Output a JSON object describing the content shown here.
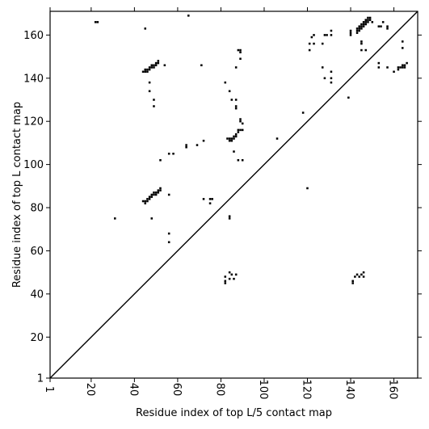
{
  "chart_data": {
    "type": "scatter",
    "xlabel": "Residue index of top L/5 contact map",
    "ylabel": "Residue index of top L contact map",
    "xlim": [
      1,
      171
    ],
    "ylim": [
      1,
      171
    ],
    "x_ticks": [
      1,
      20,
      40,
      60,
      80,
      100,
      120,
      140,
      160
    ],
    "y_ticks": [
      1,
      20,
      40,
      60,
      80,
      100,
      120,
      140,
      160
    ],
    "x_tick_labels": [
      "1",
      "20",
      "40",
      "60",
      "80",
      "100",
      "120",
      "140",
      "160"
    ],
    "y_tick_labels": [
      "1",
      "20",
      "40",
      "60",
      "80",
      "100",
      "120",
      "140",
      "160"
    ],
    "diagonal": true,
    "grid": false,
    "marker_color": "#000000",
    "upper_triangle": [
      [
        22,
        166
      ],
      [
        23,
        166
      ],
      [
        45,
        163
      ],
      [
        65,
        169
      ],
      [
        44,
        143
      ],
      [
        45,
        143
      ],
      [
        45,
        144
      ],
      [
        46,
        143
      ],
      [
        46,
        144
      ],
      [
        47,
        144
      ],
      [
        47,
        145
      ],
      [
        48,
        145
      ],
      [
        48,
        146
      ],
      [
        49,
        145
      ],
      [
        49,
        146
      ],
      [
        50,
        146
      ],
      [
        50,
        147
      ],
      [
        51,
        147
      ],
      [
        51,
        148
      ],
      [
        54,
        146
      ],
      [
        47,
        138
      ],
      [
        47,
        134
      ],
      [
        49,
        130
      ],
      [
        49,
        127
      ],
      [
        71,
        146
      ],
      [
        82,
        138
      ],
      [
        84,
        134
      ],
      [
        85,
        130
      ],
      [
        87,
        130
      ],
      [
        87,
        127
      ],
      [
        87,
        126
      ],
      [
        87,
        145
      ],
      [
        88,
        153
      ],
      [
        89,
        153
      ],
      [
        89,
        152
      ],
      [
        89,
        149
      ],
      [
        89,
        121
      ],
      [
        89,
        120
      ],
      [
        90,
        119
      ],
      [
        83,
        112
      ],
      [
        84,
        112
      ],
      [
        84,
        111
      ],
      [
        85,
        112
      ],
      [
        85,
        111
      ],
      [
        86,
        112
      ],
      [
        86,
        113
      ],
      [
        87,
        113
      ],
      [
        87,
        114
      ],
      [
        88,
        115
      ],
      [
        88,
        116
      ],
      [
        89,
        116
      ],
      [
        90,
        116
      ],
      [
        86,
        106
      ],
      [
        88,
        102
      ],
      [
        90,
        102
      ],
      [
        106,
        112
      ],
      [
        118,
        124
      ],
      [
        52,
        102
      ],
      [
        56,
        105
      ],
      [
        58,
        105
      ],
      [
        64,
        109
      ],
      [
        64,
        108
      ],
      [
        69,
        109
      ],
      [
        72,
        111
      ],
      [
        44,
        83
      ],
      [
        45,
        83
      ],
      [
        45,
        82
      ],
      [
        46,
        83
      ],
      [
        46,
        84
      ],
      [
        47,
        84
      ],
      [
        47,
        85
      ],
      [
        48,
        85
      ],
      [
        48,
        86
      ],
      [
        49,
        86
      ],
      [
        49,
        87
      ],
      [
        50,
        87
      ],
      [
        50,
        86
      ],
      [
        51,
        87
      ],
      [
        51,
        88
      ],
      [
        52,
        88
      ],
      [
        52,
        89
      ],
      [
        56,
        86
      ],
      [
        48,
        75
      ],
      [
        31,
        75
      ],
      [
        72,
        84
      ],
      [
        75,
        84
      ],
      [
        76,
        84
      ],
      [
        75,
        82
      ],
      [
        84,
        76
      ],
      [
        84,
        75
      ],
      [
        56,
        68
      ],
      [
        56,
        64
      ],
      [
        82,
        48
      ],
      [
        82,
        46
      ],
      [
        82,
        45
      ],
      [
        84,
        50
      ],
      [
        85,
        49
      ],
      [
        87,
        49
      ],
      [
        84,
        47
      ],
      [
        86,
        47
      ],
      [
        141,
        46
      ],
      [
        141,
        45
      ],
      [
        142,
        48
      ],
      [
        143,
        49
      ],
      [
        144,
        48
      ],
      [
        145,
        49
      ],
      [
        146,
        50
      ],
      [
        146,
        48
      ],
      [
        139,
        131
      ],
      [
        120,
        89
      ],
      [
        121,
        153
      ],
      [
        121,
        156
      ],
      [
        122,
        159
      ],
      [
        123,
        160
      ],
      [
        123,
        156
      ],
      [
        127,
        156
      ],
      [
        128,
        160
      ],
      [
        129,
        160
      ],
      [
        131,
        162
      ],
      [
        131,
        160
      ],
      [
        127,
        145
      ],
      [
        128,
        140
      ],
      [
        131,
        143
      ],
      [
        131,
        140
      ],
      [
        131,
        138
      ],
      [
        140,
        162
      ],
      [
        140,
        161
      ],
      [
        140,
        160
      ],
      [
        143,
        161
      ],
      [
        143,
        162
      ],
      [
        143,
        163
      ],
      [
        144,
        162
      ],
      [
        144,
        163
      ],
      [
        144,
        164
      ],
      [
        145,
        163
      ],
      [
        145,
        164
      ],
      [
        145,
        165
      ],
      [
        146,
        164
      ],
      [
        146,
        165
      ],
      [
        146,
        166
      ],
      [
        147,
        165
      ],
      [
        147,
        166
      ],
      [
        147,
        167
      ],
      [
        148,
        166
      ],
      [
        148,
        167
      ],
      [
        148,
        168
      ],
      [
        149,
        167
      ],
      [
        149,
        168
      ],
      [
        150,
        166
      ],
      [
        145,
        157
      ],
      [
        145,
        156
      ],
      [
        145,
        153
      ],
      [
        147,
        153
      ],
      [
        153,
        164
      ],
      [
        154,
        164
      ],
      [
        155,
        166
      ],
      [
        157,
        164
      ],
      [
        157,
        163
      ],
      [
        157,
        145
      ],
      [
        153,
        147
      ],
      [
        153,
        145
      ],
      [
        162,
        145
      ],
      [
        162,
        144
      ],
      [
        163,
        145
      ],
      [
        164,
        145
      ],
      [
        164,
        146
      ],
      [
        165,
        146
      ],
      [
        165,
        145
      ],
      [
        166,
        147
      ],
      [
        164,
        154
      ],
      [
        164,
        157
      ],
      [
        160,
        143
      ]
    ]
  }
}
